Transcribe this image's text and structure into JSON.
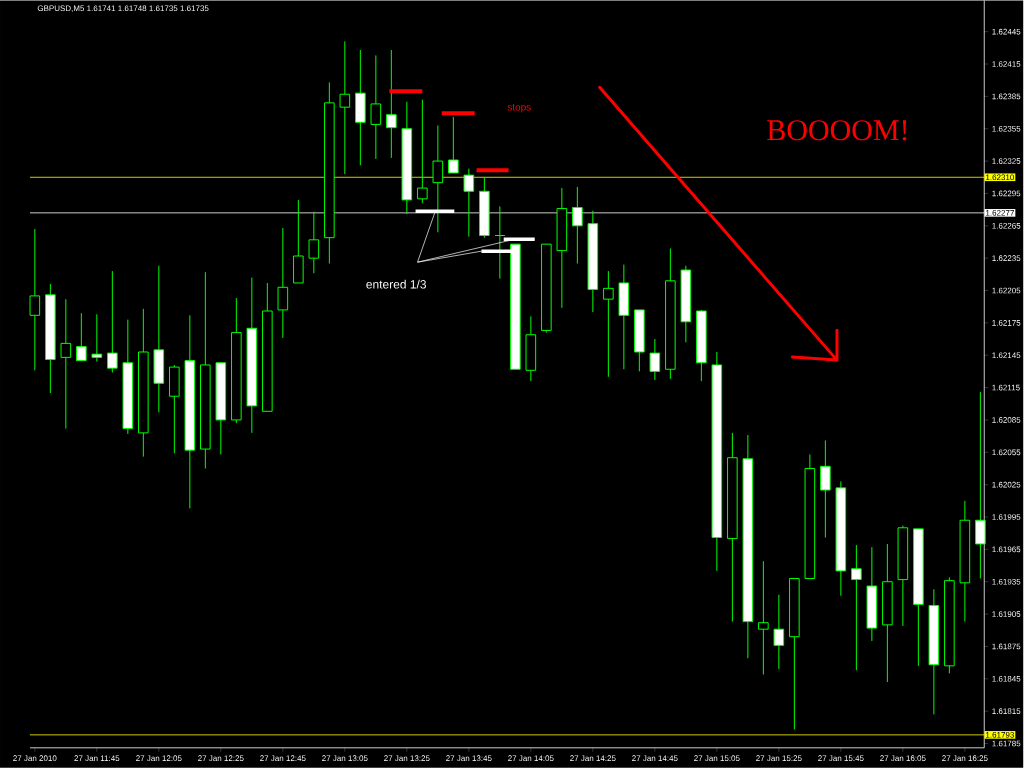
{
  "chart_data": {
    "type": "candlestick",
    "title": "GBPUSD,M5  1.61741 1.61748 1.61735 1.61735",
    "color": "#00ff00",
    "categories": [
      "27 Jan 2010",
      null,
      null,
      null,
      "27 Jan 11:45",
      null,
      null,
      null,
      "27 Jan 12:05",
      null,
      null,
      null,
      "27 Jan 12:25",
      null,
      null,
      null,
      "27 Jan 12:45",
      null,
      null,
      null,
      "27 Jan 13:05",
      null,
      null,
      null,
      "27 Jan 13:25",
      null,
      null,
      null,
      "27 Jan 13:45",
      null,
      null,
      null,
      "27 Jan 14:05",
      null,
      null,
      null,
      "27 Jan 14:25",
      null,
      null,
      null,
      "27 Jan 14:45",
      null,
      null,
      null,
      "27 Jan 15:05",
      null,
      null,
      null,
      "27 Jan 15:25",
      null,
      null,
      null,
      "27 Jan 15:45",
      null,
      null,
      null,
      "27 Jan 16:05",
      null,
      null,
      null,
      "27 Jan 16:25",
      null
    ],
    "ohlc": [
      [
        1.62182,
        1.62262,
        1.62131,
        1.622
      ],
      [
        1.62201,
        1.62211,
        1.6211,
        1.62141
      ],
      [
        1.62143,
        1.62197,
        1.62077,
        1.62156
      ],
      [
        1.62153,
        1.62184,
        1.6214,
        1.6214
      ],
      [
        1.62146,
        1.62183,
        1.62139,
        1.62143
      ],
      [
        1.62147,
        1.62223,
        1.62129,
        1.62133
      ],
      [
        1.62138,
        1.62178,
        1.62072,
        1.62077
      ],
      [
        1.62073,
        1.62188,
        1.62051,
        1.62148
      ],
      [
        1.6215,
        1.62228,
        1.62092,
        1.62119
      ],
      [
        1.62107,
        1.62136,
        1.62054,
        1.62134
      ],
      [
        1.6214,
        1.62182,
        1.62003,
        1.62057
      ],
      [
        1.62058,
        1.62222,
        1.6204,
        1.62136
      ],
      [
        1.62138,
        1.62138,
        1.62053,
        1.62085
      ],
      [
        1.62085,
        1.62198,
        1.62082,
        1.62166
      ],
      [
        1.6217,
        1.62217,
        1.62073,
        1.62098
      ],
      [
        1.62093,
        1.62212,
        1.62093,
        1.62186
      ],
      [
        1.62187,
        1.62263,
        1.62161,
        1.62208
      ],
      [
        1.62212,
        1.62289,
        1.62212,
        1.62237
      ],
      [
        1.62235,
        1.62278,
        1.62221,
        1.62252
      ],
      [
        1.62254,
        1.62398,
        1.6223,
        1.62379
      ],
      [
        1.62375,
        1.62436,
        1.62313,
        1.62387
      ],
      [
        1.62388,
        1.62428,
        1.62321,
        1.62361
      ],
      [
        1.62359,
        1.62423,
        1.62327,
        1.62378
      ],
      [
        1.62368,
        1.62428,
        1.62328,
        1.62356
      ],
      [
        1.62355,
        1.6238,
        1.62276,
        1.62289
      ],
      [
        1.6229,
        1.62382,
        1.62286,
        1.623
      ],
      [
        1.62305,
        1.62358,
        1.62259,
        1.62325
      ],
      [
        1.62326,
        1.62366,
        1.62314,
        1.62314
      ],
      [
        1.62312,
        1.62318,
        1.62255,
        1.62297
      ],
      [
        1.62297,
        1.6231,
        1.62254,
        1.62256
      ],
      [
        1.62256,
        1.62283,
        1.62216,
        1.62256
      ],
      [
        1.62248,
        1.62248,
        1.62132,
        1.62132
      ],
      [
        1.62131,
        1.62181,
        1.62121,
        1.62164
      ],
      [
        1.62168,
        1.62248,
        1.62166,
        1.62248
      ],
      [
        1.62242,
        1.623,
        1.62189,
        1.62281
      ],
      [
        1.62282,
        1.62301,
        1.6223,
        1.62265
      ],
      [
        1.62267,
        1.62279,
        1.62185,
        1.62206
      ],
      [
        1.62197,
        1.62223,
        1.62125,
        1.62207
      ],
      [
        1.62212,
        1.62229,
        1.62132,
        1.62182
      ],
      [
        1.62187,
        1.62187,
        1.6213,
        1.62148
      ],
      [
        1.62147,
        1.6216,
        1.62122,
        1.6213
      ],
      [
        1.62132,
        1.62244,
        1.62123,
        1.62214
      ],
      [
        1.62224,
        1.62228,
        1.62157,
        1.62176
      ],
      [
        1.62186,
        1.62187,
        1.62121,
        1.62138
      ],
      [
        1.62136,
        1.62148,
        1.61945,
        1.61976
      ],
      [
        1.61975,
        1.62073,
        1.61898,
        1.6205
      ],
      [
        1.62049,
        1.62071,
        1.61864,
        1.61898
      ],
      [
        1.61891,
        1.61954,
        1.61849,
        1.61897
      ],
      [
        1.61891,
        1.61923,
        1.61854,
        1.61876
      ],
      [
        1.61884,
        1.61938,
        1.61798,
        1.61938
      ],
      [
        1.61938,
        1.62053,
        1.61938,
        1.6204
      ],
      [
        1.62042,
        1.62066,
        1.61976,
        1.6202
      ],
      [
        1.62022,
        1.62028,
        1.61922,
        1.61945
      ],
      [
        1.61947,
        1.61969,
        1.61853,
        1.61937
      ],
      [
        1.61931,
        1.61967,
        1.6188,
        1.61892
      ],
      [
        1.61895,
        1.6197,
        1.61842,
        1.61935
      ],
      [
        1.61937,
        1.61987,
        1.61894,
        1.61985
      ],
      [
        1.61984,
        1.61984,
        1.61857,
        1.61914
      ],
      [
        1.61913,
        1.61928,
        1.61812,
        1.61858
      ],
      [
        1.61857,
        1.61939,
        1.6185,
        1.61936
      ],
      [
        1.61934,
        1.6201,
        1.61898,
        1.61992
      ],
      [
        1.61992,
        1.62111,
        1.61938,
        1.6197
      ]
    ],
    "ylim": [
      1.61781,
      1.62474
    ],
    "yticks": [
      1.62445,
      1.62415,
      1.62385,
      1.62355,
      1.62325,
      1.62295,
      1.62265,
      1.62235,
      1.62205,
      1.62175,
      1.62145,
      1.62115,
      1.62085,
      1.62055,
      1.62025,
      1.61995,
      1.61965,
      1.61935,
      1.61905,
      1.61875,
      1.61845,
      1.61815,
      1.61785
    ],
    "ref_lines": [
      {
        "axis": "y",
        "value": 1.6231,
        "label": "1.62310",
        "color": "#ffff00"
      },
      {
        "axis": "y",
        "value": 1.62277,
        "label": "1.62277",
        "color": "#ffffff"
      },
      {
        "axis": "y",
        "value": 1.61793,
        "label": "1.61793",
        "color": "#ffff00"
      }
    ],
    "annotations": [
      "stops",
      "BOOOOM!",
      "entered 1/3"
    ]
  }
}
